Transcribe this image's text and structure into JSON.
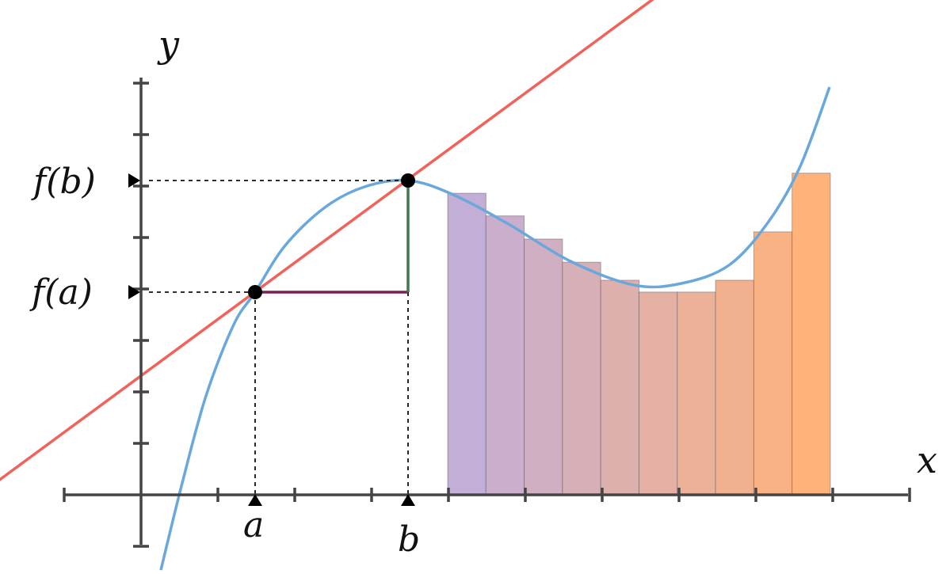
{
  "labels": {
    "x_axis": "x",
    "y_axis": "y",
    "a": "a",
    "b": "b",
    "fa": "f(a)",
    "fb": "f(b)"
  },
  "colors": {
    "axis": "#444444",
    "curve": "#6aa8dc",
    "secant": "#f0625a",
    "rise": "#3f7a52",
    "run": "#7b1f57",
    "bar_start": "#c3aed6",
    "bar_end": "#ffb27a",
    "guide": "#111111",
    "point": "#000000"
  },
  "rect_heights": [
    5.86,
    5.42,
    4.97,
    4.52,
    4.17,
    3.94,
    3.94,
    4.17,
    5.11,
    6.25
  ]
}
